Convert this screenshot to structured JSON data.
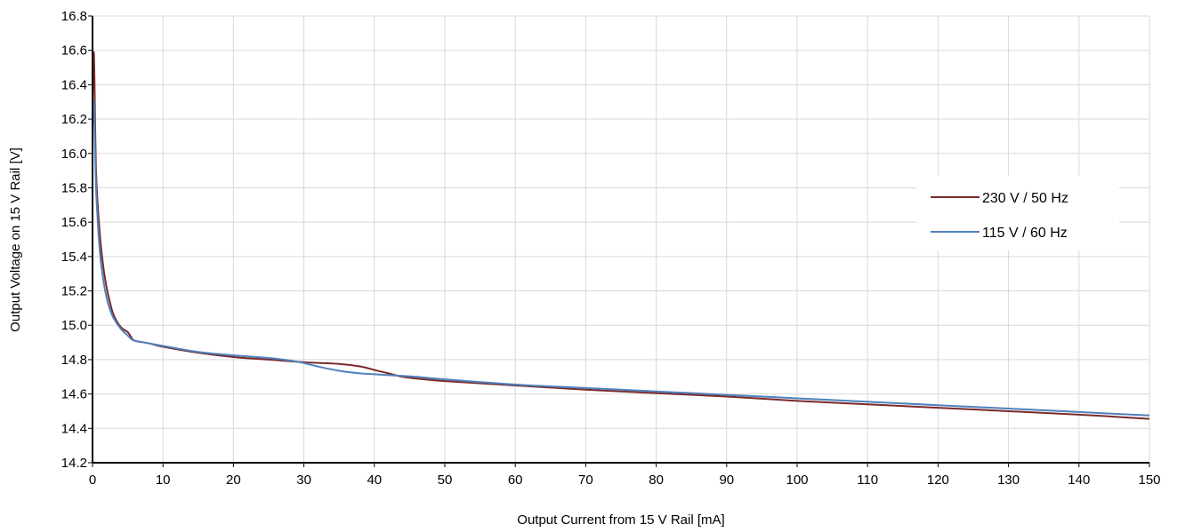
{
  "chart_data": {
    "type": "line",
    "title": "",
    "xlabel": "Output Current from 15 V Rail [mA]",
    "ylabel": "Output Voltage on 15 V Rail [V]",
    "xlim": [
      0,
      150
    ],
    "ylim": [
      14.2,
      16.8
    ],
    "x_ticks": [
      "0",
      "10",
      "20",
      "30",
      "40",
      "50",
      "60",
      "70",
      "80",
      "90",
      "100",
      "110",
      "120",
      "130",
      "140",
      "150"
    ],
    "y_ticks": [
      "14.2",
      "14.4",
      "14.6",
      "14.8",
      "15.0",
      "15.2",
      "15.4",
      "15.6",
      "15.8",
      "16.0",
      "16.2",
      "16.4",
      "16.6",
      "16.8"
    ],
    "grid": true,
    "legend_position": "right",
    "series": [
      {
        "name": "230 V / 50 Hz",
        "color": "#7b2a2a",
        "x": [
          0,
          0.2,
          0.5,
          1,
          1.5,
          2,
          2.5,
          3,
          4,
          5,
          5.5,
          6,
          8,
          10,
          15,
          20,
          25,
          30,
          35,
          38,
          40,
          42,
          44,
          46,
          50,
          60,
          70,
          80,
          90,
          100,
          110,
          120,
          130,
          140,
          150
        ],
        "y": [
          16.3,
          16.58,
          15.9,
          15.55,
          15.35,
          15.22,
          15.13,
          15.06,
          14.99,
          14.96,
          14.93,
          14.91,
          14.895,
          14.875,
          14.84,
          14.815,
          14.8,
          14.785,
          14.775,
          14.76,
          14.74,
          14.72,
          14.7,
          14.69,
          14.675,
          14.65,
          14.625,
          14.605,
          14.585,
          14.56,
          14.54,
          14.52,
          14.5,
          14.48,
          14.455
        ]
      },
      {
        "name": "115 V / 60 Hz",
        "color": "#4f81bd",
        "x": [
          0,
          0.2,
          0.5,
          1,
          1.5,
          2,
          2.5,
          3,
          4,
          5,
          5.5,
          6,
          8,
          10,
          15,
          20,
          25,
          28,
          30,
          32,
          35,
          38,
          40,
          42,
          44,
          46,
          50,
          60,
          70,
          80,
          90,
          100,
          110,
          120,
          130,
          140,
          150
        ],
        "y": [
          16.15,
          16.3,
          15.8,
          15.45,
          15.27,
          15.16,
          15.09,
          15.04,
          14.98,
          14.94,
          14.92,
          14.91,
          14.895,
          14.88,
          14.845,
          14.825,
          14.81,
          14.795,
          14.78,
          14.76,
          14.735,
          14.72,
          14.715,
          14.71,
          14.705,
          14.7,
          14.685,
          14.655,
          14.635,
          14.615,
          14.595,
          14.575,
          14.555,
          14.535,
          14.515,
          14.495,
          14.475
        ]
      }
    ]
  }
}
